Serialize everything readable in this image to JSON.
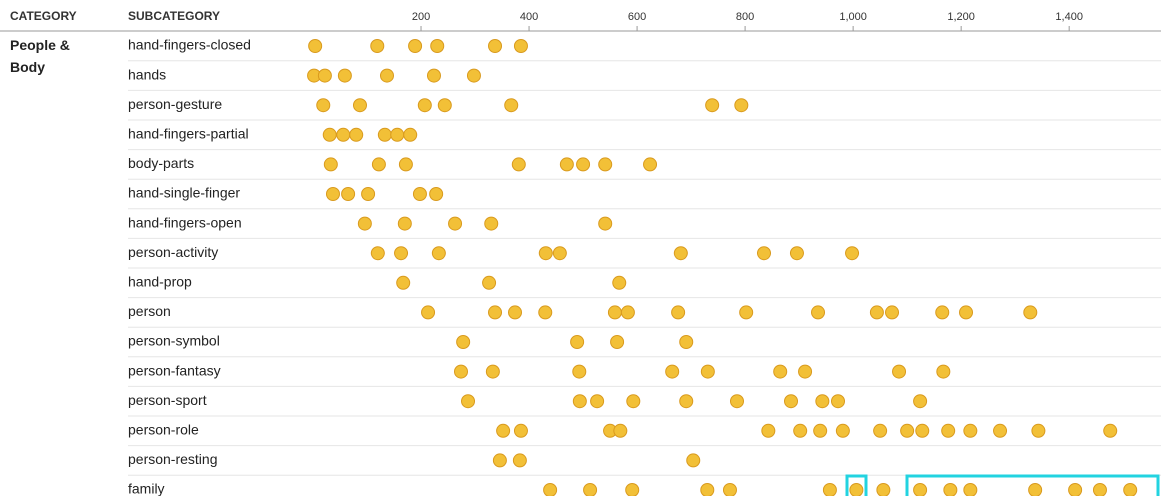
{
  "chart_data": {
    "type": "strip",
    "headers": [
      "CATEGORY",
      "SUBCATEGORY"
    ],
    "category": "People & Body",
    "xlim": [
      0,
      1570
    ],
    "xticks": [
      200,
      400,
      600,
      800,
      {
        "value": 1000,
        "label": "1,000"
      },
      {
        "value": 1200,
        "label": "1,200"
      },
      {
        "value": 1400,
        "label": "1,400"
      }
    ],
    "color": "#f2c037",
    "rows": [
      {
        "name": "hand-fingers-closed",
        "values": [
          4,
          119,
          189,
          230,
          337,
          385
        ]
      },
      {
        "name": "hands",
        "values": [
          2,
          22,
          59,
          137,
          224,
          298
        ]
      },
      {
        "name": "person-gesture",
        "values": [
          19,
          87,
          207,
          244,
          367,
          739,
          793
        ]
      },
      {
        "name": "hand-fingers-partial",
        "values": [
          31,
          56,
          80,
          133,
          156,
          180
        ]
      },
      {
        "name": "body-parts",
        "values": [
          33,
          122,
          172,
          381,
          470,
          500,
          541,
          624
        ]
      },
      {
        "name": "hand-single-finger",
        "values": [
          37,
          65,
          102,
          198,
          228
        ]
      },
      {
        "name": "hand-fingers-open",
        "values": [
          96,
          170,
          263,
          330,
          541
        ]
      },
      {
        "name": "person-activity",
        "values": [
          120,
          163,
          233,
          431,
          457,
          681,
          835,
          896,
          998
        ]
      },
      {
        "name": "hand-prop",
        "values": [
          167,
          326,
          567
        ]
      },
      {
        "name": "person",
        "values": [
          213,
          337,
          374,
          430,
          559,
          583,
          676,
          802,
          935,
          1044,
          1072,
          1165,
          1209,
          1328
        ]
      },
      {
        "name": "person-symbol",
        "values": [
          278,
          489,
          563,
          691
        ]
      },
      {
        "name": "person-fantasy",
        "values": [
          274,
          333,
          493,
          665,
          731,
          865,
          911,
          1085,
          1167
        ]
      },
      {
        "name": "person-sport",
        "values": [
          287,
          494,
          526,
          593,
          691,
          785,
          885,
          943,
          972,
          1124
        ]
      },
      {
        "name": "person-role",
        "values": [
          352,
          385,
          550,
          569,
          843,
          902,
          939,
          981,
          1050,
          1100,
          1128,
          1176,
          1217,
          1272,
          1343,
          1476
        ]
      },
      {
        "name": "person-resting",
        "values": [
          346,
          383,
          704
        ]
      },
      {
        "name": "family",
        "values": [
          439,
          513,
          591,
          730,
          772,
          957,
          1006,
          1056,
          1124,
          1180,
          1217,
          1337,
          1411,
          1457,
          1513
        ]
      }
    ]
  }
}
